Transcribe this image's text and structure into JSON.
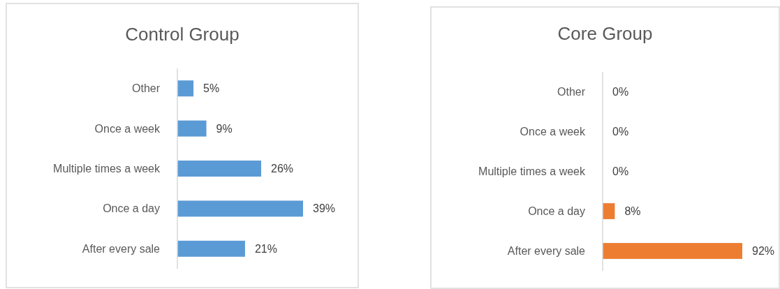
{
  "chart_data": [
    {
      "type": "bar",
      "orientation": "horizontal",
      "title": "Control Group",
      "categories": [
        "Other",
        "Once a week",
        "Multiple times a week",
        "Once a day",
        "After every sale"
      ],
      "values": [
        5,
        9,
        26,
        39,
        21
      ],
      "value_labels": [
        "5%",
        "9%",
        "26%",
        "39%",
        "21%"
      ],
      "color": "#5b9bd5"
    },
    {
      "type": "bar",
      "orientation": "horizontal",
      "title": "Core Group",
      "categories": [
        "Other",
        "Once a week",
        "Multiple times a week",
        "Once a day",
        "After every sale"
      ],
      "values": [
        0,
        0,
        0,
        8,
        92
      ],
      "value_labels": [
        "0%",
        "0%",
        "0%",
        "8%",
        "92%"
      ],
      "color": "#ed7d31"
    }
  ]
}
